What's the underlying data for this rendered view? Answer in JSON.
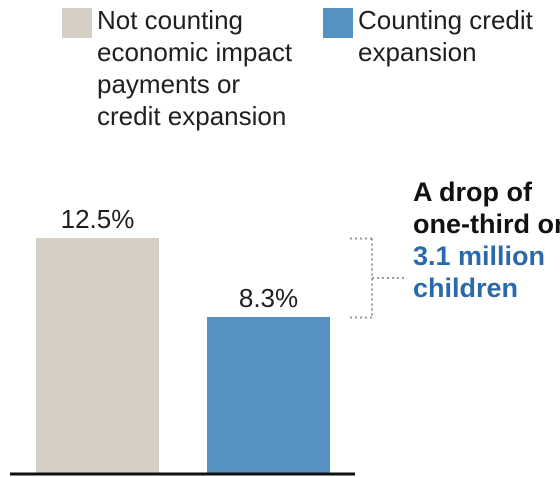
{
  "colors": {
    "series_not_counting": "#d4cec5",
    "series_counting": "#5790c2",
    "highlight": "#2a6aa8",
    "axis": "#111111",
    "bracket": "#999999"
  },
  "legend": {
    "items": [
      {
        "label_lines": [
          "Not counting",
          "economic impact",
          "payments or",
          "credit expansion"
        ]
      },
      {
        "label_lines": [
          "Counting credit",
          "expansion"
        ]
      }
    ]
  },
  "annotation": {
    "line1": "A drop of",
    "line2": "one-third or",
    "line3": "3.1 million",
    "line4": "children"
  },
  "chart_data": {
    "type": "bar",
    "categories": [
      "Not counting economic impact payments or credit expansion",
      "Counting credit expansion"
    ],
    "values": [
      12.5,
      8.3
    ],
    "value_labels": [
      "12.5%",
      "8.3%"
    ],
    "unit": "%",
    "ylim": [
      0,
      16
    ],
    "grid": false,
    "legend_position": "top"
  }
}
